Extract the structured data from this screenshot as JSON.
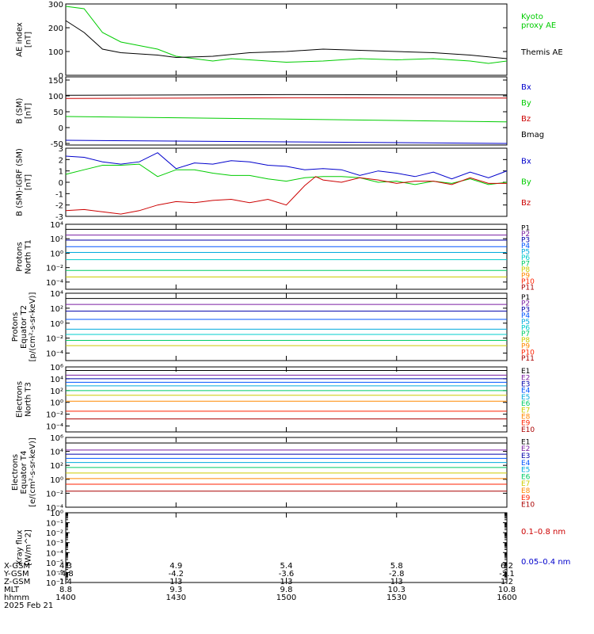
{
  "chart_data": {
    "type": "line",
    "x_range": [
      "14:00",
      "16:00"
    ],
    "panels": [
      {
        "id": "ae",
        "ylabel": [
          "AE index",
          "[nT]"
        ],
        "scale": "linear",
        "ylim": [
          0,
          300
        ],
        "ticks": [
          0,
          100,
          200,
          300
        ],
        "tick_labels": [
          "0",
          "100",
          "200",
          "300"
        ],
        "series": [
          {
            "name": "Kyoto proxy AE",
            "label_lines": [
              "Kyoto",
              "proxy AE"
            ],
            "color": "#00cc00",
            "points": [
              [
                0,
                290
              ],
              [
                5,
                280
              ],
              [
                10,
                180
              ],
              [
                15,
                140
              ],
              [
                20,
                125
              ],
              [
                25,
                110
              ],
              [
                30,
                80
              ],
              [
                40,
                60
              ],
              [
                45,
                70
              ],
              [
                50,
                65
              ],
              [
                60,
                55
              ],
              [
                70,
                60
              ],
              [
                80,
                70
              ],
              [
                90,
                65
              ],
              [
                100,
                70
              ],
              [
                110,
                60
              ],
              [
                115,
                50
              ],
              [
                120,
                60
              ]
            ]
          },
          {
            "name": "Themis AE",
            "label_lines": [
              "Themis AE"
            ],
            "color": "#000000",
            "points": [
              [
                0,
                230
              ],
              [
                5,
                180
              ],
              [
                10,
                110
              ],
              [
                15,
                95
              ],
              [
                20,
                90
              ],
              [
                25,
                85
              ],
              [
                30,
                75
              ],
              [
                40,
                80
              ],
              [
                50,
                95
              ],
              [
                60,
                100
              ],
              [
                70,
                110
              ],
              [
                80,
                105
              ],
              [
                90,
                100
              ],
              [
                100,
                95
              ],
              [
                110,
                85
              ],
              [
                120,
                70
              ]
            ]
          }
        ]
      },
      {
        "id": "bsm",
        "ylabel": [
          "B (SM)",
          "[nT]"
        ],
        "scale": "linear",
        "ylim": [
          -55,
          160
        ],
        "ticks": [
          -50,
          0,
          50,
          100,
          150
        ],
        "tick_labels": [
          "-50",
          "0",
          "50",
          "100",
          "150"
        ],
        "series": [
          {
            "name": "Bx",
            "color": "#0000cc",
            "points": [
              [
                0,
                -40
              ],
              [
                60,
                -45
              ],
              [
                120,
                -50
              ]
            ]
          },
          {
            "name": "By",
            "color": "#00cc00",
            "points": [
              [
                0,
                35
              ],
              [
                60,
                27
              ],
              [
                120,
                18
              ]
            ]
          },
          {
            "name": "Bz",
            "color": "#cc0000",
            "points": [
              [
                0,
                92
              ],
              [
                60,
                94
              ],
              [
                120,
                93
              ]
            ]
          },
          {
            "name": "Bmag",
            "color": "#000000",
            "points": [
              [
                0,
                102
              ],
              [
                60,
                104
              ],
              [
                120,
                103
              ]
            ]
          }
        ]
      },
      {
        "id": "bigrf",
        "ylabel": [
          "B (SM)-IGRF (SM)",
          "[nT]"
        ],
        "scale": "linear",
        "ylim": [
          -3,
          3
        ],
        "ticks": [
          -3,
          -2,
          -1,
          0,
          1,
          2,
          3
        ],
        "tick_labels": [
          "-3",
          "-2",
          "-1",
          "0",
          "1",
          "2",
          "3"
        ],
        "series": [
          {
            "name": "Bx",
            "color": "#0000cc",
            "points": [
              [
                0,
                2.3
              ],
              [
                5,
                2.2
              ],
              [
                10,
                1.8
              ],
              [
                15,
                1.6
              ],
              [
                20,
                1.8
              ],
              [
                25,
                2.6
              ],
              [
                30,
                1.2
              ],
              [
                35,
                1.7
              ],
              [
                40,
                1.6
              ],
              [
                45,
                1.9
              ],
              [
                50,
                1.8
              ],
              [
                55,
                1.5
              ],
              [
                60,
                1.4
              ],
              [
                65,
                1.1
              ],
              [
                70,
                1.2
              ],
              [
                75,
                1.1
              ],
              [
                80,
                0.6
              ],
              [
                85,
                1.0
              ],
              [
                90,
                0.8
              ],
              [
                95,
                0.5
              ],
              [
                100,
                0.9
              ],
              [
                105,
                0.3
              ],
              [
                110,
                0.9
              ],
              [
                115,
                0.4
              ],
              [
                120,
                1.0
              ]
            ]
          },
          {
            "name": "By",
            "color": "#00cc00",
            "points": [
              [
                0,
                0.7
              ],
              [
                5,
                1.1
              ],
              [
                10,
                1.5
              ],
              [
                15,
                1.5
              ],
              [
                20,
                1.6
              ],
              [
                25,
                0.5
              ],
              [
                30,
                1.1
              ],
              [
                35,
                1.1
              ],
              [
                40,
                0.8
              ],
              [
                45,
                0.6
              ],
              [
                50,
                0.6
              ],
              [
                55,
                0.3
              ],
              [
                60,
                0.1
              ],
              [
                65,
                0.4
              ],
              [
                70,
                0.5
              ],
              [
                75,
                0.5
              ],
              [
                80,
                0.4
              ],
              [
                85,
                0.0
              ],
              [
                90,
                0.1
              ],
              [
                95,
                -0.2
              ],
              [
                100,
                0.1
              ],
              [
                105,
                -0.1
              ],
              [
                110,
                0.3
              ],
              [
                115,
                -0.2
              ],
              [
                120,
                0.0
              ]
            ]
          },
          {
            "name": "Bz",
            "color": "#cc0000",
            "points": [
              [
                0,
                -2.5
              ],
              [
                5,
                -2.4
              ],
              [
                10,
                -2.6
              ],
              [
                15,
                -2.8
              ],
              [
                20,
                -2.5
              ],
              [
                25,
                -2.0
              ],
              [
                30,
                -1.7
              ],
              [
                35,
                -1.8
              ],
              [
                40,
                -1.6
              ],
              [
                45,
                -1.5
              ],
              [
                50,
                -1.8
              ],
              [
                55,
                -1.5
              ],
              [
                60,
                -2.0
              ],
              [
                65,
                -0.3
              ],
              [
                68,
                0.5
              ],
              [
                70,
                0.2
              ],
              [
                75,
                0.0
              ],
              [
                80,
                0.4
              ],
              [
                85,
                0.2
              ],
              [
                90,
                -0.1
              ],
              [
                95,
                0.1
              ],
              [
                100,
                0.1
              ],
              [
                105,
                -0.2
              ],
              [
                110,
                0.4
              ],
              [
                115,
                -0.1
              ],
              [
                120,
                -0.1
              ]
            ]
          }
        ]
      },
      {
        "id": "pn",
        "ylabel": [
          "Protons",
          "North T1"
        ],
        "scale": "log",
        "ylim": [
          -5,
          4
        ],
        "ticks": [
          -4,
          -2,
          0,
          2,
          4
        ],
        "tick_labels": [
          "10⁻⁴",
          "10⁻²",
          "10⁰",
          "10²",
          "10⁴"
        ],
        "series": [
          {
            "name": "P1",
            "color": "#000000",
            "flat": 3.3
          },
          {
            "name": "P2",
            "color": "#7a1fa2",
            "flat": 2.5
          },
          {
            "name": "P3",
            "color": "#0000aa",
            "flat": 1.8
          },
          {
            "name": "P4",
            "color": "#0055ff",
            "flat": 0.9
          },
          {
            "name": "P5",
            "color": "#00aadd",
            "flat": 0.1
          },
          {
            "name": "P6",
            "color": "#00cccc",
            "flat": -0.9
          },
          {
            "name": "P7",
            "color": "#00cc66",
            "flat": -2.4
          },
          {
            "name": "P8",
            "color": "#cccc00",
            "flat": -3.3
          },
          {
            "name": "P9",
            "color": "#ff8800",
            "flat": null
          },
          {
            "name": "P10",
            "color": "#ff2200",
            "flat": null
          },
          {
            "name": "P11",
            "color": "#aa0000",
            "flat": null
          }
        ]
      },
      {
        "id": "pe",
        "ylabel": [
          "Protons",
          "Equator T2",
          "[p/(cm²-s-sr-keV)]"
        ],
        "scale": "log",
        "ylim": [
          -5,
          4
        ],
        "ticks": [
          -4,
          -2,
          0,
          2,
          4
        ],
        "tick_labels": [
          "10⁻⁴",
          "10⁻²",
          "10⁰",
          "10²",
          "10⁴"
        ],
        "series": [
          {
            "name": "P1",
            "color": "#000000",
            "flat": 3.3
          },
          {
            "name": "P2",
            "color": "#7a1fa2",
            "flat": 2.5
          },
          {
            "name": "P3",
            "color": "#0000aa",
            "flat": 1.6
          },
          {
            "name": "P4",
            "color": "#0055ff",
            "flat": 0.5
          },
          {
            "name": "P5",
            "color": "#00aadd",
            "flat": -0.8
          },
          {
            "name": "P6",
            "color": "#00cccc",
            "flat": -1.5
          },
          {
            "name": "P7",
            "color": "#00cc66",
            "flat": -2.3
          },
          {
            "name": "P8",
            "color": "#cccc00",
            "flat": -3.0
          },
          {
            "name": "P9",
            "color": "#ff8800",
            "flat": null
          },
          {
            "name": "P10",
            "color": "#ff2200",
            "flat": null
          },
          {
            "name": "P11",
            "color": "#aa0000",
            "flat": null
          }
        ]
      },
      {
        "id": "en",
        "ylabel": [
          "Electrons",
          "North T3"
        ],
        "scale": "log",
        "ylim": [
          -5,
          6
        ],
        "ticks": [
          -4,
          -2,
          0,
          2,
          4,
          6
        ],
        "tick_labels": [
          "10⁻⁴",
          "10⁻²",
          "10⁰",
          "10²",
          "10⁴",
          "10⁶"
        ],
        "series": [
          {
            "name": "E1",
            "color": "#000000",
            "flat": 5.4
          },
          {
            "name": "E2",
            "color": "#7a1fa2",
            "flat": 4.6
          },
          {
            "name": "E3",
            "color": "#0000aa",
            "flat": 4.0
          },
          {
            "name": "E4",
            "color": "#0055ff",
            "flat": 3.4
          },
          {
            "name": "E5",
            "color": "#00aadd",
            "flat": 2.8
          },
          {
            "name": "E6",
            "color": "#00cc66",
            "flat": 2.0
          },
          {
            "name": "E7",
            "color": "#cccc00",
            "flat": 1.2
          },
          {
            "name": "E8",
            "color": "#ff8800",
            "flat": 0.2
          },
          {
            "name": "E9",
            "color": "#ff2200",
            "flat": -1.5
          },
          {
            "name": "E10",
            "color": "#aa0000",
            "flat": -2.8
          }
        ]
      },
      {
        "id": "ee",
        "ylabel": [
          "Electrons",
          "Equator T4",
          "[e/(cm²-s-sr-keV)]"
        ],
        "scale": "log",
        "ylim": [
          -4,
          6
        ],
        "ticks": [
          -4,
          -2,
          0,
          2,
          4,
          6
        ],
        "tick_labels": [
          "10⁻⁴",
          "10⁻²",
          "10⁰",
          "10²",
          "10⁴",
          "10⁶"
        ],
        "series": [
          {
            "name": "E1",
            "color": "#000000",
            "flat": 5.2
          },
          {
            "name": "E2",
            "color": "#7a1fa2",
            "flat": 4.2
          },
          {
            "name": "E3",
            "color": "#0000aa",
            "flat": 3.6
          },
          {
            "name": "E4",
            "color": "#0055ff",
            "flat": 3.0
          },
          {
            "name": "E5",
            "color": "#00aadd",
            "flat": 2.4
          },
          {
            "name": "E6",
            "color": "#00cc66",
            "flat": 1.7
          },
          {
            "name": "E7",
            "color": "#cccc00",
            "flat": 0.9
          },
          {
            "name": "E8",
            "color": "#ff8800",
            "flat": 0.1
          },
          {
            "name": "E9",
            "color": "#ff2200",
            "flat": -0.7
          },
          {
            "name": "E10",
            "color": "#aa0000",
            "flat": -1.7
          }
        ]
      },
      {
        "id": "xray",
        "ylabel": [
          "Xray flux",
          "[W/m^2]"
        ],
        "scale": "log",
        "ylim": [
          -7,
          0
        ],
        "ticks": [
          -7,
          -6,
          -5,
          -4,
          -3,
          -2,
          -1,
          0
        ],
        "tick_labels": [
          "10⁻⁷",
          "10⁻⁶",
          "10⁻⁵",
          "10⁻⁴",
          "10⁻³",
          "10⁻²",
          "10⁻¹",
          "10⁰"
        ],
        "series": [
          {
            "name": "0.1–0.8 nm",
            "color": "#cc0000",
            "flat": null
          },
          {
            "name": "0.05–0.4 nm",
            "color": "#0000cc",
            "flat": null
          }
        ]
      }
    ],
    "footer": {
      "rows": [
        {
          "label": "X-GSM",
          "values": [
            "4.3",
            "4.9",
            "5.4",
            "5.8",
            "6.2"
          ]
        },
        {
          "label": "Y-GSM",
          "values": [
            "-4.8",
            "-4.2",
            "-3.6",
            "-2.8",
            "-2.1"
          ]
        },
        {
          "label": "Z-GSM",
          "values": [
            "1.4",
            "1.3",
            "1.3",
            "1.3",
            "1.2"
          ]
        },
        {
          "label": "MLT",
          "values": [
            "8.8",
            "9.3",
            "9.8",
            "10.3",
            "10.8"
          ]
        },
        {
          "label": "hhmm",
          "values": [
            "1400",
            "1430",
            "1500",
            "1530",
            "1600"
          ]
        }
      ],
      "date": "2025 Feb 21"
    }
  }
}
